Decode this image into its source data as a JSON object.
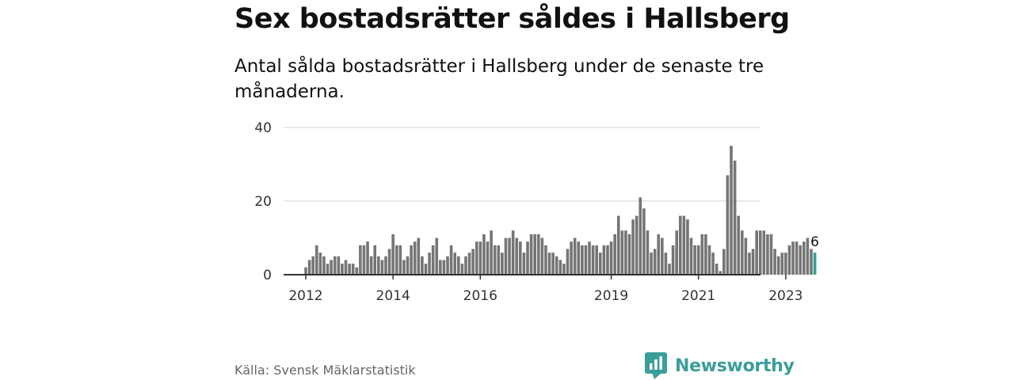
{
  "header": {
    "title": "Sex bostadsrätter såldes i Hallsberg",
    "subtitle": "Antal sålda bostadsrätter i Hallsberg under de senaste tre månaderna."
  },
  "footer": {
    "source": "Källa: Svensk Mäklarstatistik",
    "brand": "Newsworthy",
    "brand_icon": "bar-chart-speech-bubble-icon"
  },
  "colors": {
    "bar": "#757575",
    "highlight": "#2aa198",
    "grid": "#d9d9d9",
    "axis": "#333333",
    "brand": "#3a9e9a"
  },
  "chart_data": {
    "type": "bar",
    "x_start": "2012-01",
    "x_interval": "month",
    "values": [
      2,
      4,
      5,
      8,
      6,
      5,
      3,
      4,
      5,
      5,
      3,
      4,
      3,
      3,
      2,
      8,
      8,
      9,
      5,
      8,
      5,
      4,
      5,
      7,
      11,
      8,
      8,
      4,
      5,
      8,
      9,
      10,
      5,
      3,
      6,
      8,
      10,
      4,
      4,
      5,
      8,
      6,
      5,
      3,
      5,
      6,
      7,
      9,
      9,
      11,
      9,
      12,
      8,
      8,
      6,
      10,
      10,
      12,
      10,
      9,
      6,
      9,
      11,
      11,
      11,
      10,
      8,
      6,
      6,
      5,
      4,
      3,
      7,
      9,
      10,
      9,
      8,
      8,
      9,
      8,
      8,
      6,
      8,
      8,
      9,
      11,
      16,
      12,
      12,
      11,
      15,
      16,
      21,
      18,
      12,
      6,
      7,
      11,
      10,
      6,
      3,
      8,
      12,
      16,
      16,
      15,
      10,
      8,
      8,
      11,
      11,
      8,
      6,
      3,
      1,
      7,
      27,
      35,
      31,
      16,
      12,
      10,
      6,
      7,
      12,
      12,
      12,
      11,
      11,
      7,
      5,
      6,
      6,
      8,
      9,
      9,
      8,
      9,
      10,
      7,
      6
    ],
    "highlight_last": true,
    "highlight_label": "6",
    "x_tick_labels": [
      "2012",
      "2014",
      "2016",
      "2019",
      "2021",
      "2023"
    ],
    "y_ticks": [
      0,
      20,
      40
    ],
    "ylim": [
      0,
      40
    ],
    "grid": true,
    "legend": "none"
  }
}
